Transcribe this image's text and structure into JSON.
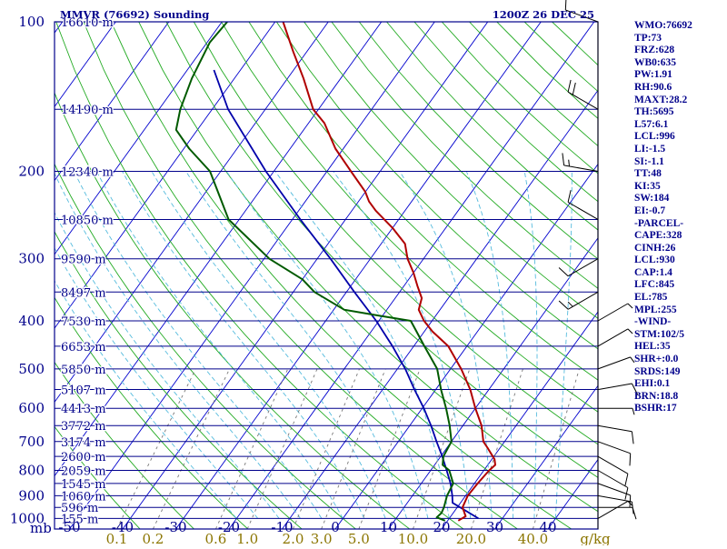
{
  "header": {
    "station": "MMVR (76692) Sounding",
    "time": "1200Z 26 DEC 25"
  },
  "colors": {
    "frame": "#00008b",
    "isobar": "#00008b",
    "isotherm": "#0000cd",
    "dry_adiabat": "#22aa22",
    "moist_adiabat": "#55bbdd",
    "mixing_ratio": "#777777",
    "temperature": "#b00000",
    "dewpoint": "#005a00",
    "parcel": "#0000aa",
    "wind_barb": "#000000"
  },
  "chart_data": {
    "type": "skew-t",
    "pressure_labels": [
      "100",
      "200",
      "300",
      "400",
      "500",
      "600",
      "700",
      "800",
      "900",
      "1000"
    ],
    "pressure_unit_label": "mb",
    "height_labels": [
      {
        "p": 100,
        "text": "16610 m"
      },
      {
        "p": 150,
        "text": "14190 m"
      },
      {
        "p": 200,
        "text": "12340 m"
      },
      {
        "p": 250,
        "text": "10850 m"
      },
      {
        "p": 300,
        "text": "9590 m"
      },
      {
        "p": 350,
        "text": "8497 m"
      },
      {
        "p": 400,
        "text": "7530 m"
      },
      {
        "p": 450,
        "text": "6653 m"
      },
      {
        "p": 500,
        "text": "5850 m"
      },
      {
        "p": 550,
        "text": "5107 m"
      },
      {
        "p": 600,
        "text": "4413 m"
      },
      {
        "p": 650,
        "text": "3772 m"
      },
      {
        "p": 700,
        "text": "3174 m"
      },
      {
        "p": 750,
        "text": "2600 m"
      },
      {
        "p": 800,
        "text": "2059 m"
      },
      {
        "p": 850,
        "text": "1545 m"
      },
      {
        "p": 900,
        "text": "1060 m"
      },
      {
        "p": 950,
        "text": "596 m"
      },
      {
        "p": 1000,
        "text": "155 m"
      }
    ],
    "temperature_ticks": [
      "-50",
      "-40",
      "-30",
      "-20",
      "-10",
      "0",
      "10",
      "20",
      "30",
      "40"
    ],
    "mixing_ratio_ticks": [
      "0.1",
      "0.2",
      "0.6",
      "1.0",
      "2.0",
      "3.0",
      "5.0",
      "10.0",
      "20.0",
      "40.0"
    ],
    "mixing_ratio_unit": "g/kg",
    "isobars_mb": [
      100,
      150,
      200,
      250,
      300,
      350,
      400,
      450,
      500,
      550,
      600,
      650,
      700,
      750,
      800,
      850,
      900,
      950,
      1000
    ],
    "temperature": [
      {
        "p": 1010,
        "t": 22.0
      },
      {
        "p": 990,
        "t": 22.8
      },
      {
        "p": 950,
        "t": 21.0
      },
      {
        "p": 900,
        "t": 20.4
      },
      {
        "p": 850,
        "t": 20.6
      },
      {
        "p": 800,
        "t": 21.0
      },
      {
        "p": 780,
        "t": 21.4
      },
      {
        "p": 760,
        "t": 20.5
      },
      {
        "p": 720,
        "t": 17.6
      },
      {
        "p": 700,
        "t": 16.0
      },
      {
        "p": 650,
        "t": 13.5
      },
      {
        "p": 600,
        "t": 10.0
      },
      {
        "p": 550,
        "t": 6.5
      },
      {
        "p": 500,
        "t": 2.0
      },
      {
        "p": 450,
        "t": -3.5
      },
      {
        "p": 420,
        "t": -8.5
      },
      {
        "p": 400,
        "t": -11.5
      },
      {
        "p": 380,
        "t": -14.0
      },
      {
        "p": 360,
        "t": -15.0
      },
      {
        "p": 340,
        "t": -17.5
      },
      {
        "p": 320,
        "t": -20.0
      },
      {
        "p": 300,
        "t": -23.0
      },
      {
        "p": 280,
        "t": -25.5
      },
      {
        "p": 260,
        "t": -30.0
      },
      {
        "p": 240,
        "t": -35.5
      },
      {
        "p": 230,
        "t": -38.0
      },
      {
        "p": 220,
        "t": -40.0
      },
      {
        "p": 200,
        "t": -45.5
      },
      {
        "p": 180,
        "t": -51.5
      },
      {
        "p": 160,
        "t": -57.0
      },
      {
        "p": 150,
        "t": -61.0
      },
      {
        "p": 130,
        "t": -67.0
      },
      {
        "p": 115,
        "t": -72.5
      },
      {
        "p": 100,
        "t": -78.5
      }
    ],
    "dewpoint": [
      {
        "p": 1010,
        "t": 19.5
      },
      {
        "p": 995,
        "t": 17.5
      },
      {
        "p": 975,
        "t": 17.8
      },
      {
        "p": 950,
        "t": 17.5
      },
      {
        "p": 900,
        "t": 16.5
      },
      {
        "p": 850,
        "t": 16.0
      },
      {
        "p": 800,
        "t": 13.5
      },
      {
        "p": 780,
        "t": 11.5
      },
      {
        "p": 750,
        "t": 10.5
      },
      {
        "p": 700,
        "t": 10.0
      },
      {
        "p": 650,
        "t": 7.5
      },
      {
        "p": 600,
        "t": 4.5
      },
      {
        "p": 550,
        "t": 1.0
      },
      {
        "p": 500,
        "t": -2.5
      },
      {
        "p": 450,
        "t": -8.0
      },
      {
        "p": 420,
        "t": -11.5
      },
      {
        "p": 400,
        "t": -14.0
      },
      {
        "p": 390,
        "t": -21.0
      },
      {
        "p": 380,
        "t": -28.0
      },
      {
        "p": 350,
        "t": -36.0
      },
      {
        "p": 330,
        "t": -40.0
      },
      {
        "p": 300,
        "t": -49.0
      },
      {
        "p": 250,
        "t": -62.0
      },
      {
        "p": 200,
        "t": -72.0
      },
      {
        "p": 180,
        "t": -79.0
      },
      {
        "p": 165,
        "t": -84.0
      },
      {
        "p": 150,
        "t": -86.0
      },
      {
        "p": 130,
        "t": -88.0
      },
      {
        "p": 110,
        "t": -89.5
      },
      {
        "p": 100,
        "t": -89.0
      }
    ],
    "parcel": [
      {
        "p": 1000,
        "t": 25.5
      },
      {
        "p": 930,
        "t": 18.5
      },
      {
        "p": 900,
        "t": 17.5
      },
      {
        "p": 850,
        "t": 15.5
      },
      {
        "p": 800,
        "t": 13.0
      },
      {
        "p": 750,
        "t": 10.3
      },
      {
        "p": 700,
        "t": 7.2
      },
      {
        "p": 650,
        "t": 4.0
      },
      {
        "p": 600,
        "t": 0.3
      },
      {
        "p": 550,
        "t": -4.0
      },
      {
        "p": 500,
        "t": -8.5
      },
      {
        "p": 450,
        "t": -14.0
      },
      {
        "p": 400,
        "t": -20.5
      },
      {
        "p": 350,
        "t": -28.5
      },
      {
        "p": 300,
        "t": -37.5
      },
      {
        "p": 250,
        "t": -48.5
      },
      {
        "p": 200,
        "t": -61.5
      },
      {
        "p": 150,
        "t": -77.0
      },
      {
        "p": 125,
        "t": -85.0
      }
    ],
    "wind": [
      {
        "p": 1000,
        "dir": 60,
        "kt": 5
      },
      {
        "p": 950,
        "dir": 90,
        "kt": 10
      },
      {
        "p": 900,
        "dir": 100,
        "kt": 10
      },
      {
        "p": 850,
        "dir": 110,
        "kt": 10
      },
      {
        "p": 800,
        "dir": 120,
        "kt": 10
      },
      {
        "p": 750,
        "dir": 120,
        "kt": 10
      },
      {
        "p": 700,
        "dir": 110,
        "kt": 10
      },
      {
        "p": 650,
        "dir": 100,
        "kt": 10
      },
      {
        "p": 600,
        "dir": 90,
        "kt": 5
      },
      {
        "p": 550,
        "dir": 80,
        "kt": 10
      },
      {
        "p": 500,
        "dir": 70,
        "kt": 5
      },
      {
        "p": 450,
        "dir": 60,
        "kt": 5
      },
      {
        "p": 400,
        "dir": 60,
        "kt": 5
      },
      {
        "p": 350,
        "dir": 240,
        "kt": 15
      },
      {
        "p": 300,
        "dir": 240,
        "kt": 10
      },
      {
        "p": 250,
        "dir": 300,
        "kt": 10
      },
      {
        "p": 200,
        "dir": 280,
        "kt": 15
      },
      {
        "p": 150,
        "dir": 300,
        "kt": 20
      },
      {
        "p": 100,
        "dir": 290,
        "kt": 10
      }
    ]
  },
  "side_panel": [
    "WMO:76692",
    "TP:73",
    "FRZ:628",
    "WB0:635",
    "PW:1.91",
    "RH:90.6",
    "MAXT:28.2",
    "TH:5695",
    "L57:6.1",
    "LCL:996",
    "LI:-1.5",
    "SI:-1.1",
    "TT:48",
    "KI:35",
    "SW:184",
    "EI:-0.7",
    "-PARCEL-",
    "CAPE:328",
    "CINH:26",
    "LCL:930",
    "CAP:1.4",
    "LFC:845",
    "EL:785",
    "MPL:255",
    "-WIND-",
    "STM:102/5",
    "HEL:35",
    "SHR+:0.0",
    "SRDS:149",
    "EHI:0.1",
    "BRN:18.8",
    "BSHR:17"
  ]
}
